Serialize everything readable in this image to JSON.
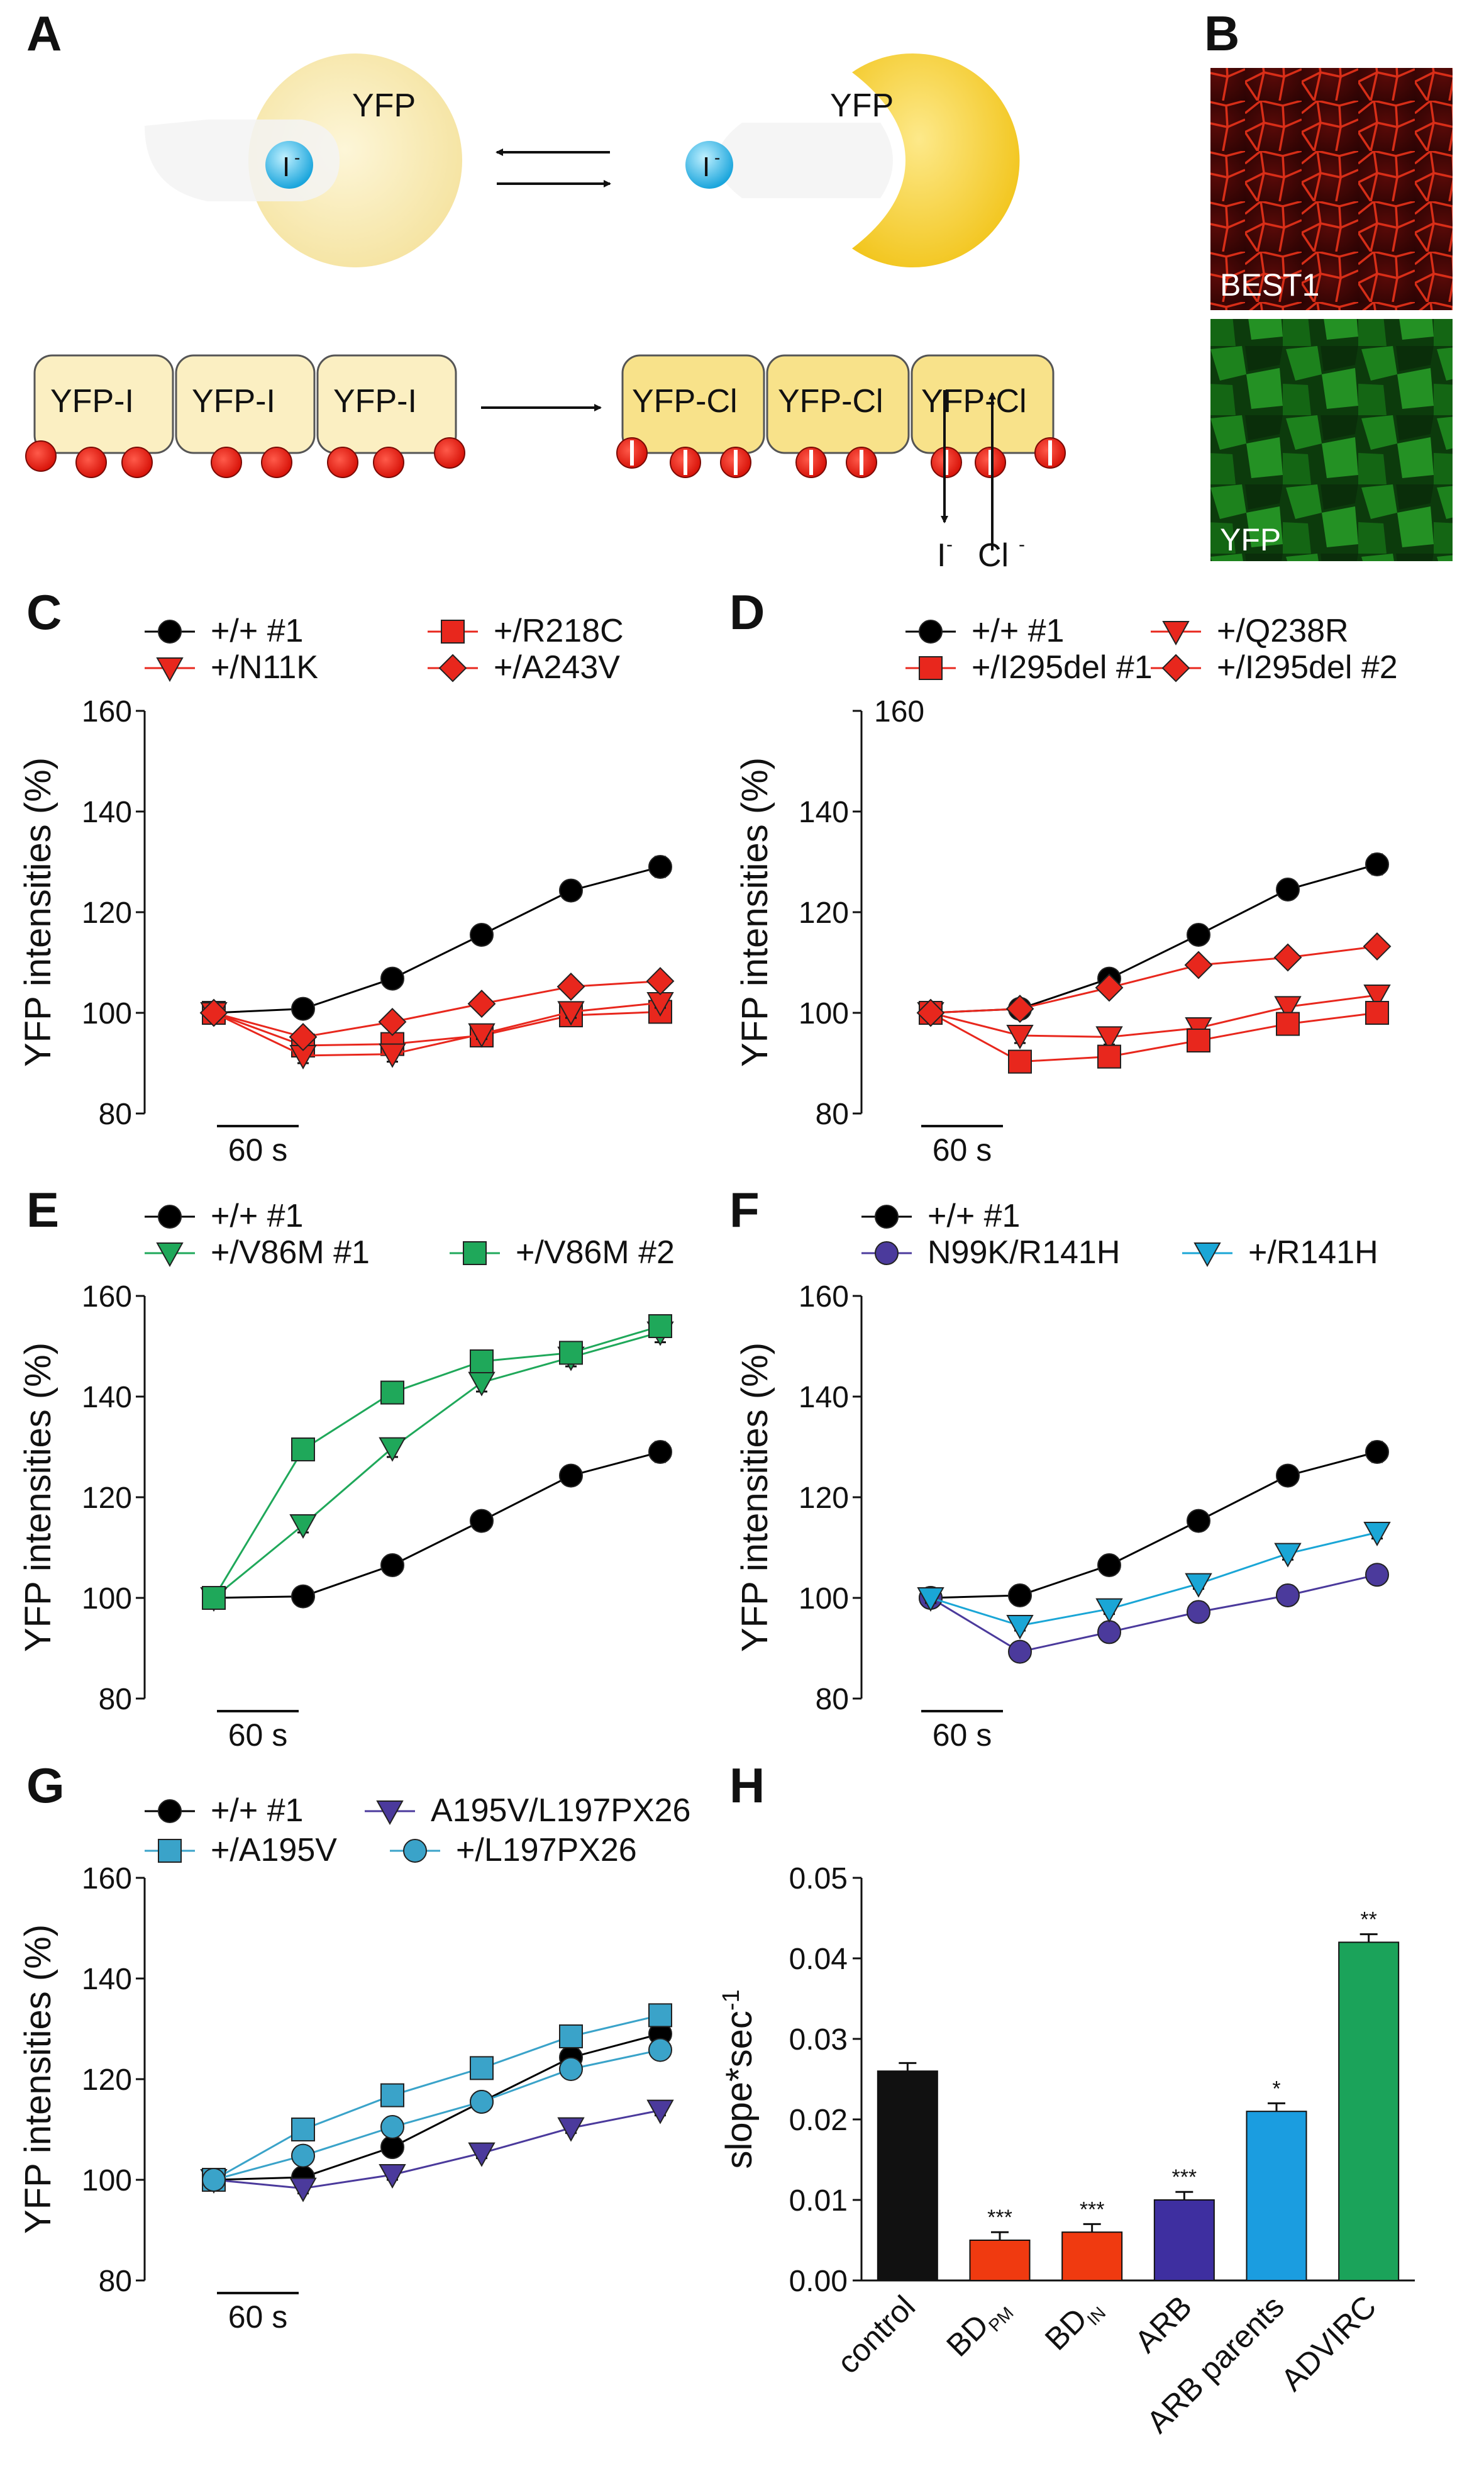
{
  "panel_letters": {
    "A": "A",
    "B": "B",
    "C": "C",
    "D": "D",
    "E": "E",
    "F": "F",
    "G": "G",
    "H": "H"
  },
  "diagram": {
    "yfp": "YFP",
    "iodide": "I",
    "yfp_iodide": "YFP-I",
    "yfp_chloride": "YFP-Cl",
    "iodide_out": "I",
    "chloride_in": "Cl",
    "ion_superscript": "-"
  },
  "micrographs": {
    "best1": "BEST1",
    "yfp": "YFP"
  },
  "colors": {
    "black": "#000000",
    "red": "#e8271d",
    "green": "#1fa85a",
    "purple": "#4b3a9c",
    "cyan": "#1aa6d6",
    "teal_blue": "#3aa3c9",
    "bar_black": "#111111",
    "bar_red": "#f03a10",
    "bar_purple": "#3e2fa0",
    "bar_blue": "#1b9de0",
    "bar_green": "#1ba35a"
  },
  "chart_data": [
    {
      "panel": "C",
      "type": "line",
      "ylabel": "YFP intensities (%)",
      "ylim": [
        80,
        160
      ],
      "yticks": [
        80,
        100,
        120,
        140,
        160
      ],
      "scale_bar": "60 s",
      "x": [
        0,
        60,
        120,
        180,
        240,
        300
      ],
      "series": [
        {
          "name": "+/+ #1",
          "marker": "circle",
          "color": "#000000",
          "values": [
            100,
            100.8,
            106.8,
            115.5,
            124.3,
            129.0
          ],
          "err": [
            1,
            1,
            1.5,
            1,
            1.8,
            2
          ]
        },
        {
          "name": "+/R218C",
          "marker": "square",
          "color": "#e8271d",
          "values": [
            100,
            93.5,
            93.8,
            95.5,
            99.5,
            100.2
          ],
          "err": [
            1,
            1,
            1,
            1,
            1,
            1
          ]
        },
        {
          "name": "+/N11K",
          "marker": "triangle-down",
          "color": "#e8271d",
          "values": [
            100,
            91.5,
            91.8,
            95.8,
            100.2,
            102.0
          ],
          "err": [
            1,
            1.5,
            1.5,
            1,
            1.2,
            1
          ]
        },
        {
          "name": "+/A243V",
          "marker": "diamond",
          "color": "#e8271d",
          "values": [
            100,
            95.2,
            98.2,
            101.8,
            105.2,
            106.3
          ],
          "err": [
            1,
            1,
            1,
            1,
            1,
            1
          ]
        }
      ]
    },
    {
      "panel": "D",
      "type": "line",
      "ylabel": "YFP intensities (%)",
      "ylim": [
        80,
        160
      ],
      "yticks": [
        80,
        100,
        120,
        140,
        160
      ],
      "scale_bar": "60 s",
      "x": [
        0,
        60,
        120,
        180,
        240,
        300
      ],
      "series": [
        {
          "name": "+/+ #1",
          "marker": "circle",
          "color": "#000000",
          "values": [
            100,
            100.8,
            106.8,
            115.5,
            124.5,
            129.5
          ],
          "err": [
            1,
            1,
            1.5,
            1,
            1.8,
            2
          ]
        },
        {
          "name": "+/Q238R",
          "marker": "triangle-down",
          "color": "#e8271d",
          "values": [
            100,
            95.5,
            95.2,
            97.0,
            101.2,
            103.5
          ],
          "err": [
            1,
            1.5,
            1.5,
            1.5,
            1.5,
            1.5
          ]
        },
        {
          "name": "+/I295del #1",
          "marker": "square",
          "color": "#e8271d",
          "values": [
            100,
            90.3,
            91.3,
            94.5,
            97.8,
            100.0
          ],
          "err": [
            1,
            1,
            1,
            1,
            1,
            1
          ]
        },
        {
          "name": "+/I295del #2",
          "marker": "diamond",
          "color": "#e8271d",
          "values": [
            100,
            100.8,
            105.0,
            109.5,
            111.0,
            113.2
          ],
          "err": [
            1,
            1,
            1,
            1,
            1,
            1
          ]
        }
      ]
    },
    {
      "panel": "E",
      "type": "line",
      "ylabel": "YFP intensities (%)",
      "ylim": [
        80,
        160
      ],
      "yticks": [
        80,
        100,
        120,
        140,
        160
      ],
      "scale_bar": "60 s",
      "x": [
        0,
        60,
        120,
        180,
        240,
        300
      ],
      "series": [
        {
          "name": "+/+ #1",
          "marker": "circle",
          "color": "#000000",
          "values": [
            100,
            100.3,
            106.5,
            115.3,
            124.3,
            129.0
          ],
          "err": [
            1,
            1,
            1.5,
            1,
            1.8,
            2
          ]
        },
        {
          "name": "+/V86M #1",
          "marker": "triangle-down",
          "color": "#1fa85a",
          "values": [
            100,
            114.5,
            129.8,
            142.8,
            147.8,
            152.8
          ],
          "err": [
            1,
            1.5,
            1.8,
            1.8,
            1.8,
            2
          ]
        },
        {
          "name": "+/V86M #2",
          "marker": "square",
          "color": "#1fa85a",
          "values": [
            100,
            129.5,
            140.8,
            147.0,
            148.7,
            154.0
          ],
          "err": [
            1,
            1.5,
            1.8,
            1.8,
            1.8,
            2
          ]
        }
      ]
    },
    {
      "panel": "F",
      "type": "line",
      "ylabel": "YFP intensities (%)",
      "ylim": [
        80,
        160
      ],
      "yticks": [
        80,
        100,
        120,
        140,
        160
      ],
      "scale_bar": "60 s",
      "x": [
        0,
        60,
        120,
        180,
        240,
        300
      ],
      "series": [
        {
          "name": "+/+ #1",
          "marker": "circle",
          "color": "#000000",
          "values": [
            100,
            100.5,
            106.5,
            115.3,
            124.3,
            129.0
          ],
          "err": [
            1,
            1,
            1.5,
            1,
            1.8,
            2
          ]
        },
        {
          "name": "N99K/R141H",
          "marker": "circle",
          "color": "#4b3a9c",
          "values": [
            100,
            89.3,
            93.2,
            97.2,
            100.5,
            104.6
          ],
          "err": [
            1,
            1,
            1,
            1,
            1,
            1
          ]
        },
        {
          "name": "+/R141H",
          "marker": "triangle-down",
          "color": "#1aa6d6",
          "values": [
            100,
            94.5,
            97.8,
            102.8,
            108.8,
            113.0
          ],
          "err": [
            1,
            1,
            1,
            1,
            1.2,
            1.2
          ]
        }
      ]
    },
    {
      "panel": "G",
      "type": "line",
      "ylabel": "YFP intensities (%)",
      "ylim": [
        80,
        160
      ],
      "yticks": [
        80,
        100,
        120,
        140,
        160
      ],
      "scale_bar": "60 s",
      "x": [
        0,
        60,
        120,
        180,
        240,
        300
      ],
      "series": [
        {
          "name": "+/+ #1",
          "marker": "circle",
          "color": "#000000",
          "values": [
            100,
            100.5,
            106.5,
            115.5,
            124.3,
            129.0
          ],
          "err": [
            1,
            1,
            1.5,
            1,
            1.8,
            2
          ]
        },
        {
          "name": "A195V/L197PX26",
          "marker": "triangle-down",
          "color": "#4b3a9c",
          "values": [
            100,
            98.3,
            101.0,
            105.3,
            110.3,
            113.8
          ],
          "err": [
            1,
            1,
            1,
            1,
            1,
            1
          ]
        },
        {
          "name": "+/A195V",
          "marker": "square",
          "color": "#3aa3c9",
          "values": [
            100,
            110.0,
            116.8,
            122.2,
            128.5,
            132.7
          ],
          "err": [
            1,
            1,
            1,
            1,
            1,
            1.2
          ]
        },
        {
          "name": "+/L197PX26",
          "marker": "circle",
          "color": "#3aa3c9",
          "values": [
            100,
            104.8,
            110.5,
            115.5,
            122.0,
            125.8
          ],
          "err": [
            1,
            1,
            1,
            1,
            1,
            1.2
          ]
        }
      ]
    },
    {
      "panel": "H",
      "type": "bar",
      "ylabel": "slope*sec",
      "ylabel_sup": "-1",
      "ylim": [
        0,
        0.05
      ],
      "yticks": [
        "0.00",
        "0.01",
        "0.02",
        "0.03",
        "0.04",
        "0.05"
      ],
      "categories": [
        {
          "label": "control",
          "sub": ""
        },
        {
          "label": "BD",
          "sub": "PM"
        },
        {
          "label": "BD",
          "sub": "IN"
        },
        {
          "label": "ARB",
          "sub": ""
        },
        {
          "label": "ARB parents",
          "sub": ""
        },
        {
          "label": "ADVIRC",
          "sub": ""
        }
      ],
      "values": [
        0.026,
        0.005,
        0.006,
        0.01,
        0.021,
        0.042
      ],
      "err": [
        0.001,
        0.001,
        0.001,
        0.001,
        0.001,
        0.001
      ],
      "significance": [
        "",
        "***",
        "***",
        "***",
        "*",
        "**"
      ],
      "bar_colors": [
        "#111111",
        "#f03a10",
        "#f03a10",
        "#3e2fa0",
        "#1b9de0",
        "#1ba35a"
      ]
    }
  ]
}
